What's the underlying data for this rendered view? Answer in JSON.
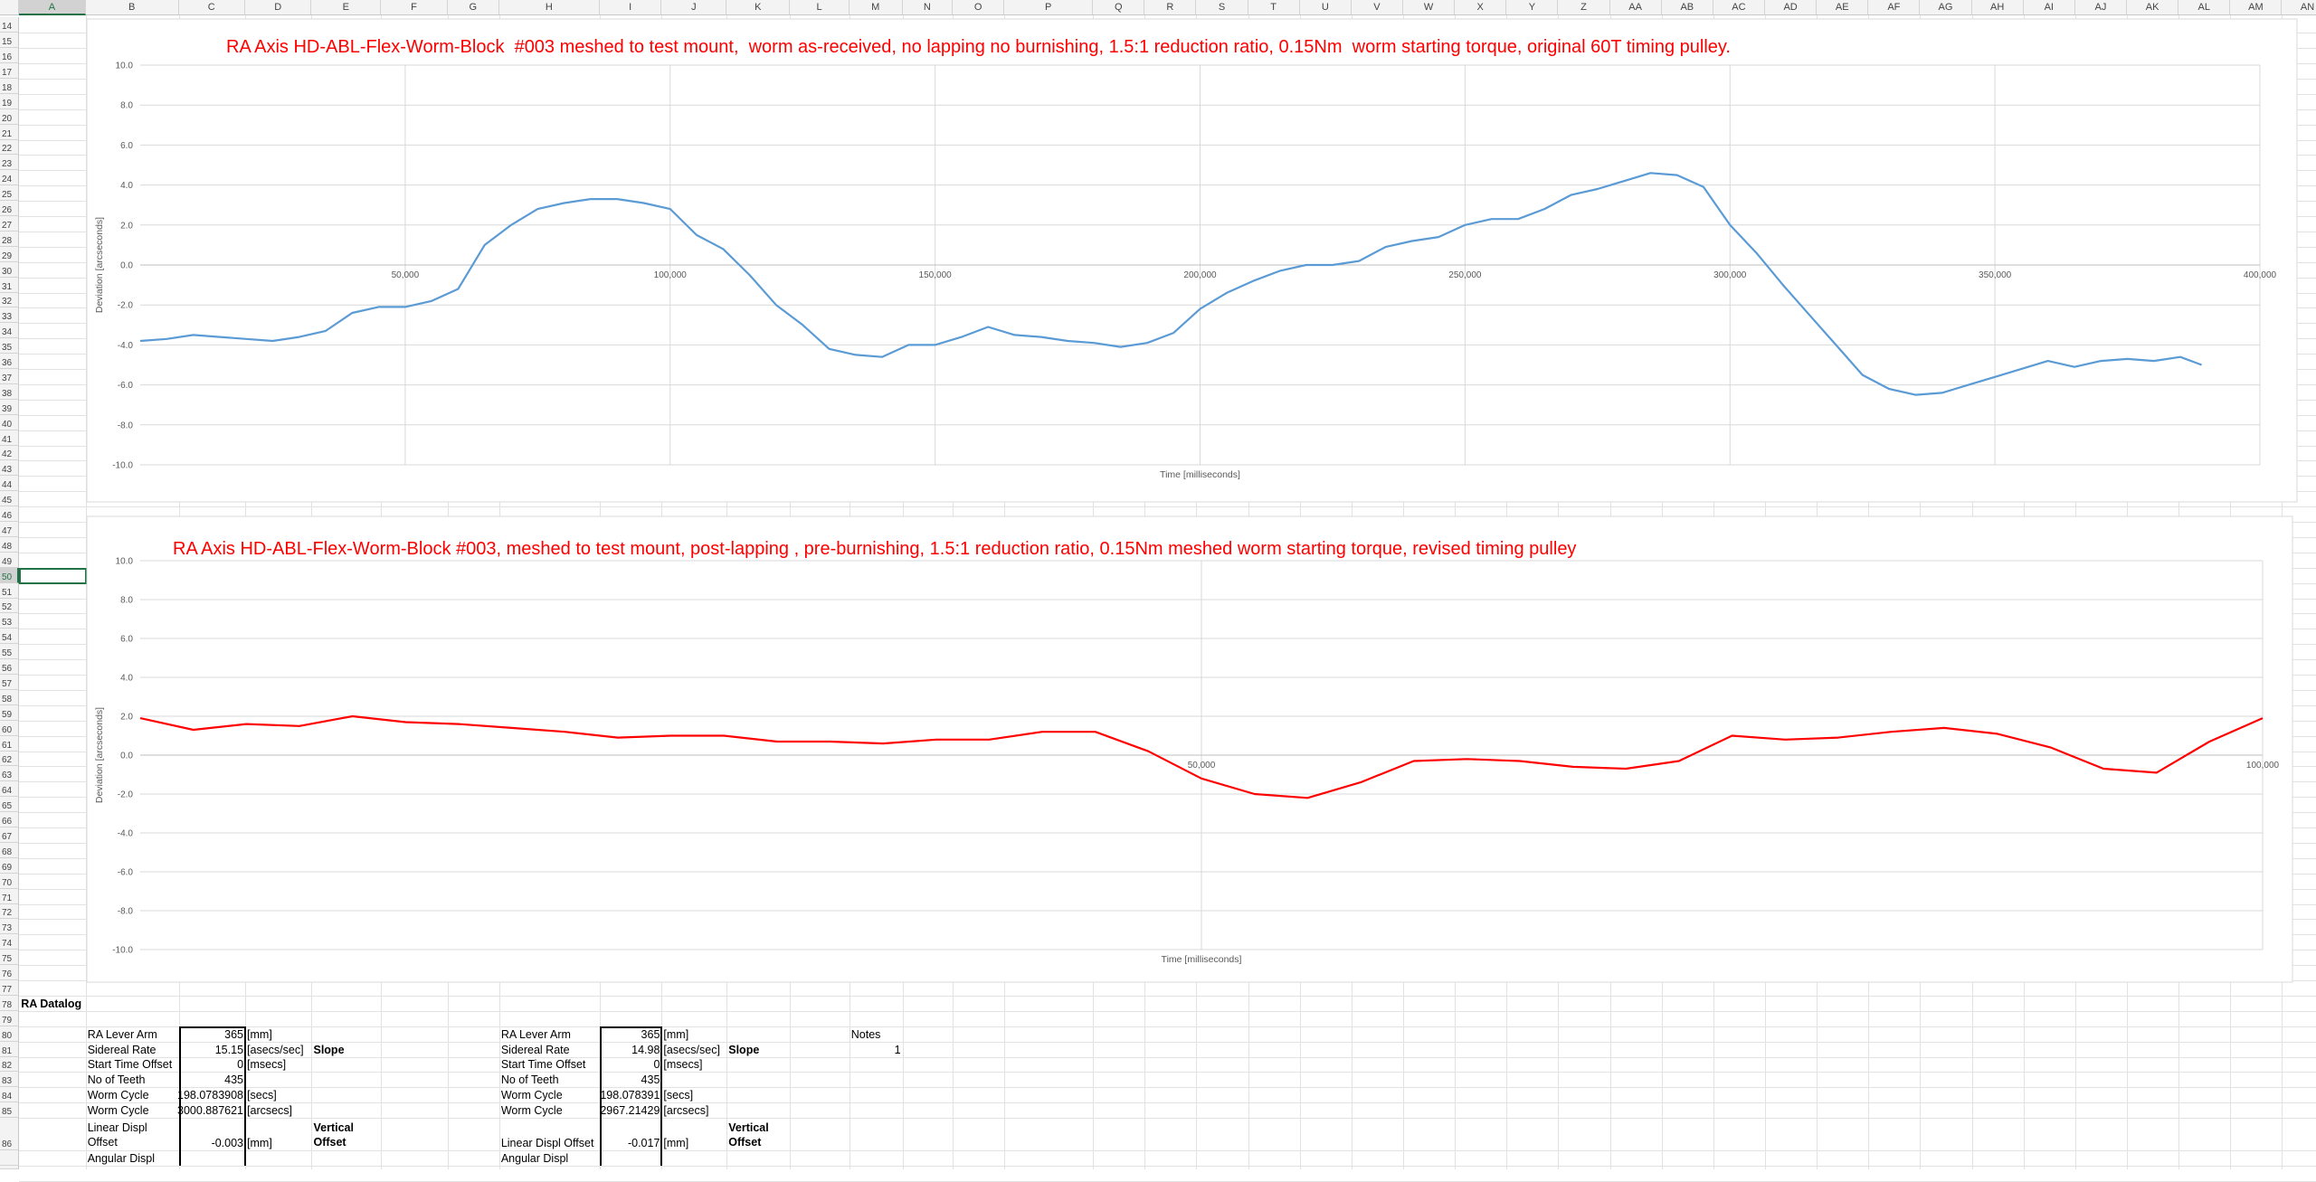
{
  "spreadsheet": {
    "columns": [
      "A",
      "B",
      "C",
      "D",
      "E",
      "F",
      "G",
      "H",
      "I",
      "J",
      "K",
      "L",
      "M",
      "N",
      "O",
      "P",
      "Q",
      "R",
      "S",
      "T",
      "U",
      "V",
      "W",
      "X",
      "Y",
      "Z",
      "AA",
      "AB",
      "AC",
      "AD",
      "AE",
      "AF",
      "AG",
      "AH",
      "AI",
      "AJ",
      "AK",
      "AL",
      "AM",
      "AN"
    ],
    "rows": [
      14,
      15,
      16,
      17,
      18,
      19,
      20,
      21,
      22,
      23,
      24,
      25,
      26,
      27,
      28,
      29,
      30,
      31,
      32,
      33,
      34,
      35,
      36,
      37,
      38,
      39,
      40,
      41,
      42,
      43,
      44,
      45,
      46,
      47,
      48,
      49,
      50,
      51,
      52,
      53,
      54,
      55,
      56,
      57,
      58,
      59,
      60,
      61,
      62,
      63,
      64,
      65,
      66,
      67,
      68,
      69,
      70,
      71,
      72,
      73,
      74,
      75,
      76,
      77,
      78,
      79,
      80,
      81,
      82,
      83,
      84,
      85,
      86
    ],
    "cells": {
      "A78": "RA Datalog",
      "B80": "RA Lever Arm",
      "C80": 365,
      "D80": "[mm]",
      "B81": "Sidereal Rate",
      "C81": 15.15,
      "D81": "[asecs/sec]",
      "E81": "Slope",
      "B82": "Start Time Offset",
      "C82": 0,
      "D82": "[msecs]",
      "B83": "No of Teeth",
      "C83": 435,
      "B84": "Worm Cycle",
      "C84": 198.0783908,
      "D84": "[secs]",
      "B85": "Worm Cycle",
      "C85": 3000.887621,
      "D85": "[arcsecs]",
      "B86": "Linear Displ Offset",
      "C86": -0.003,
      "D86": "[mm]",
      "E86": "Vertical Offset",
      "B87": "Angular Displ",
      "H80": "RA Lever Arm",
      "I80": 365,
      "J80": "[mm]",
      "H81": "Sidereal Rate",
      "I81": 14.98,
      "J81": "[asecs/sec]",
      "K81": "Slope",
      "H82": "Start Time Offset",
      "I82": 0,
      "J82": "[msecs]",
      "H83": "No of Teeth",
      "I83": 435,
      "H84": "Worm Cycle",
      "I84": 198.078391,
      "J84": "[secs]",
      "H85": "Worm Cycle",
      "I85": 2967.21429,
      "J85": "[arcsecs]",
      "H86": "Linear Displ Offset",
      "I86": -0.017,
      "J86": "[mm]",
      "K86": "Vertical Offset",
      "H87": "Angular Displ",
      "M80": "Notes",
      "M81": 1
    }
  },
  "chart_data": [
    {
      "type": "line",
      "title": "RA Axis HD-ABL-Flex-Worm-Block  #003 meshed to test mount,  worm as-received, no lapping no burnishing, 1.5:1 reduction ratio, 0.15Nm  worm starting torque, original 60T timing pulley.",
      "x_label": "Time [milliseconds]",
      "y_label": "Deviation [arcseconds]",
      "xlim": [
        0,
        400000
      ],
      "xticks": [
        {
          "value": 50000,
          "label": "50,000"
        },
        {
          "value": 100000,
          "label": "100,000"
        },
        {
          "value": 150000,
          "label": "150,000"
        },
        {
          "value": 200000,
          "label": "200,000"
        },
        {
          "value": 250000,
          "label": "250,000"
        },
        {
          "value": 300000,
          "label": "300,000"
        },
        {
          "value": 350000,
          "label": "350,000"
        },
        {
          "value": 400000,
          "label": "400,000"
        }
      ],
      "ylim": [
        -10,
        10
      ],
      "yticks": [
        {
          "value": -10,
          "label": "-10.0"
        },
        {
          "value": -8,
          "label": "-8.0"
        },
        {
          "value": -6,
          "label": "-6.0"
        },
        {
          "value": -4,
          "label": "-4.0"
        },
        {
          "value": -2,
          "label": "-2.0"
        },
        {
          "value": 0,
          "label": "0.0"
        },
        {
          "value": 2,
          "label": "2.0"
        },
        {
          "value": 4,
          "label": "4.0"
        },
        {
          "value": 6,
          "label": "6.0"
        },
        {
          "value": 8,
          "label": "8.0"
        },
        {
          "value": 10,
          "label": "10.0"
        }
      ],
      "grid": true,
      "x": [
        0,
        5000,
        10000,
        15000,
        20000,
        25000,
        30000,
        35000,
        40000,
        45000,
        50000,
        55000,
        60000,
        65000,
        70000,
        75000,
        80000,
        85000,
        90000,
        95000,
        100000,
        105000,
        110000,
        115000,
        120000,
        125000,
        130000,
        135000,
        140000,
        145000,
        150000,
        155000,
        160000,
        165000,
        170000,
        175000,
        180000,
        185000,
        190000,
        195000,
        200000,
        205000,
        210000,
        215000,
        220000,
        225000,
        230000,
        235000,
        240000,
        245000,
        250000,
        255000,
        260000,
        265000,
        270000,
        275000,
        280000,
        285000,
        290000,
        295000,
        300000,
        305000,
        310000,
        315000,
        320000,
        325000,
        330000,
        335000,
        340000,
        345000,
        350000,
        355000,
        360000,
        365000,
        370000,
        375000,
        380000,
        385000,
        389000
      ],
      "series": [
        {
          "color": "#5b9bd5",
          "values": [
            -3.8,
            -3.7,
            -3.5,
            -3.6,
            -3.7,
            -3.8,
            -3.6,
            -3.3,
            -2.4,
            -2.1,
            -2.1,
            -1.8,
            -1.2,
            1.0,
            2.0,
            2.8,
            3.1,
            3.3,
            3.3,
            3.1,
            2.8,
            1.5,
            0.8,
            -0.5,
            -2.0,
            -3.0,
            -4.2,
            -4.5,
            -4.6,
            -4.0,
            -4.0,
            -3.6,
            -3.1,
            -3.5,
            -3.6,
            -3.8,
            -3.9,
            -4.1,
            -3.9,
            -3.4,
            -2.2,
            -1.4,
            -0.8,
            -0.3,
            0.0,
            0.0,
            0.2,
            0.9,
            1.2,
            1.4,
            2.0,
            2.3,
            2.3,
            2.8,
            3.5,
            3.8,
            4.2,
            4.6,
            4.5,
            3.9,
            2.0,
            0.6,
            -1.0,
            -2.5,
            -4.0,
            -5.5,
            -6.2,
            -6.5,
            -6.4,
            -6.0,
            -5.6,
            -5.2,
            -4.8,
            -5.1,
            -4.8,
            -4.7,
            -4.8,
            -4.6,
            -5.0
          ]
        }
      ]
    },
    {
      "type": "line",
      "title": "RA Axis HD-ABL-Flex-Worm-Block #003, meshed to test mount, post-lapping , pre-burnishing, 1.5:1 reduction ratio, 0.15Nm meshed worm starting torque, revised timing pulley",
      "x_label": "Time [milliseconds]",
      "y_label": "Deviation [arcseconds]",
      "xlim": [
        0,
        100000
      ],
      "xticks": [
        {
          "value": 50000,
          "label": "50,000"
        },
        {
          "value": 100000,
          "label": "100,000"
        }
      ],
      "ylim": [
        -10,
        10
      ],
      "yticks": [
        {
          "value": -10,
          "label": "-10.0"
        },
        {
          "value": -8,
          "label": "-8.0"
        },
        {
          "value": -6,
          "label": "-6.0"
        },
        {
          "value": -4,
          "label": "-4.0"
        },
        {
          "value": -2,
          "label": "-2.0"
        },
        {
          "value": 0,
          "label": "0.0"
        },
        {
          "value": 2,
          "label": "2.0"
        },
        {
          "value": 4,
          "label": "4.0"
        },
        {
          "value": 6,
          "label": "6.0"
        },
        {
          "value": 8,
          "label": "8.0"
        },
        {
          "value": 10,
          "label": "10.0"
        }
      ],
      "grid": true,
      "x": [
        0,
        2500,
        5000,
        7500,
        10000,
        12500,
        15000,
        17500,
        20000,
        22500,
        25000,
        27500,
        30000,
        32500,
        35000,
        37500,
        40000,
        42500,
        45000,
        47500,
        50000,
        52500,
        55000,
        57500,
        60000,
        62500,
        65000,
        67500,
        70000,
        72500,
        75000,
        77500,
        80000,
        82500,
        85000,
        87500,
        90000,
        92500,
        95000,
        97500,
        100000
      ],
      "series": [
        {
          "color": "#ff0000",
          "values": [
            1.9,
            1.3,
            1.6,
            1.5,
            2.0,
            1.7,
            1.6,
            1.4,
            1.2,
            0.9,
            1.0,
            1.0,
            0.7,
            0.7,
            0.6,
            0.8,
            0.8,
            1.2,
            1.2,
            0.2,
            -1.2,
            -2.0,
            -2.2,
            -1.4,
            -0.3,
            -0.2,
            -0.3,
            -0.6,
            -0.7,
            -0.3,
            1.0,
            0.8,
            0.9,
            1.2,
            1.4,
            1.1,
            0.4,
            -0.7,
            -0.9,
            0.7,
            1.9
          ]
        }
      ]
    }
  ]
}
